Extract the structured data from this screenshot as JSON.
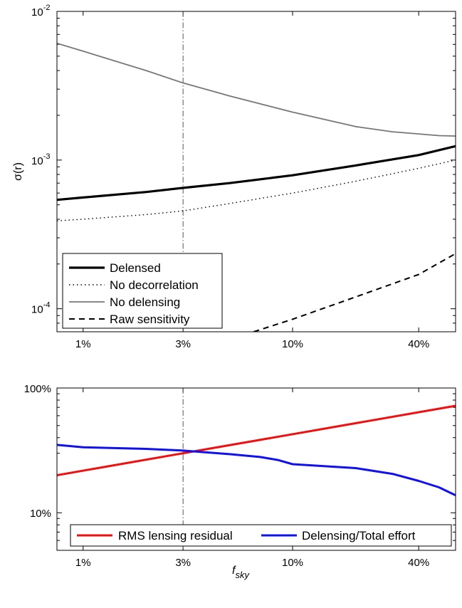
{
  "chart_data": [
    {
      "type": "line",
      "ylabel": "σ(r)",
      "xscale": "log",
      "yscale": "log",
      "xlim": [
        0.0075,
        0.6
      ],
      "ylim": [
        7e-05,
        0.01
      ],
      "x_ticks": [
        {
          "value": 0.01,
          "label": "1%"
        },
        {
          "value": 0.03,
          "label": "3%"
        },
        {
          "value": 0.1,
          "label": "10%"
        },
        {
          "value": 0.4,
          "label": "40%"
        }
      ],
      "y_ticks": [
        {
          "value": 0.0001,
          "base": "10",
          "exp": "-4"
        },
        {
          "value": 0.001,
          "base": "10",
          "exp": "-3"
        },
        {
          "value": 0.01,
          "base": "10",
          "exp": "-2"
        }
      ],
      "reference_line": {
        "x": 0.03,
        "style": "dash-dot"
      },
      "legend_position": "bottom-left",
      "series": [
        {
          "name": "Delensed",
          "style": "solid-thick",
          "color": "#000000",
          "x": [
            0.0075,
            0.01,
            0.02,
            0.03,
            0.05,
            0.1,
            0.2,
            0.4,
            0.6
          ],
          "y": [
            0.00054,
            0.00056,
            0.00061,
            0.00065,
            0.0007,
            0.00079,
            0.00092,
            0.00108,
            0.00124
          ]
        },
        {
          "name": "No decorrelation",
          "style": "dotted",
          "color": "#000000",
          "x": [
            0.0075,
            0.01,
            0.02,
            0.03,
            0.05,
            0.1,
            0.2,
            0.4,
            0.6
          ],
          "y": [
            0.00039,
            0.0004,
            0.00043,
            0.000455,
            0.00051,
            0.0006,
            0.00072,
            0.00088,
            0.001
          ]
        },
        {
          "name": "No delensing",
          "style": "solid",
          "color": "#777777",
          "x": [
            0.0075,
            0.01,
            0.02,
            0.03,
            0.05,
            0.1,
            0.2,
            0.3,
            0.4,
            0.5,
            0.6
          ],
          "y": [
            0.0061,
            0.0054,
            0.004,
            0.0033,
            0.0027,
            0.0021,
            0.00168,
            0.00155,
            0.0015,
            0.00146,
            0.00145
          ]
        },
        {
          "name": "Raw sensitivity",
          "style": "dashed",
          "color": "#000000",
          "x": [
            0.0652,
            0.1,
            0.2,
            0.4,
            0.6
          ],
          "y": [
            7e-05,
            8.5e-05,
            0.00012,
            0.00017,
            0.000235
          ]
        }
      ]
    },
    {
      "type": "line",
      "xlabel": "f_sky",
      "xlabel_main": "f",
      "xlabel_sub": "sky",
      "xscale": "log",
      "yscale": "log",
      "xlim": [
        0.0075,
        0.6
      ],
      "ylim": [
        0.05,
        1.0
      ],
      "x_ticks": [
        {
          "value": 0.01,
          "label": "1%"
        },
        {
          "value": 0.03,
          "label": "3%"
        },
        {
          "value": 0.1,
          "label": "10%"
        },
        {
          "value": 0.4,
          "label": "40%"
        }
      ],
      "y_ticks": [
        {
          "value": 0.1,
          "label": "10%"
        },
        {
          "value": 1.0,
          "label": "100%"
        }
      ],
      "reference_line": {
        "x": 0.03,
        "style": "dash-dot"
      },
      "legend_position": "bottom",
      "series": [
        {
          "name": "RMS lensing residual",
          "color": "#ee1111",
          "x": [
            0.0075,
            0.6
          ],
          "y": [
            0.2,
            0.72
          ]
        },
        {
          "name": "Delensing/Total effort",
          "color": "#1111ee",
          "x": [
            0.0075,
            0.01,
            0.02,
            0.03,
            0.05,
            0.07,
            0.085,
            0.1,
            0.2,
            0.3,
            0.4,
            0.5,
            0.6
          ],
          "y": [
            0.35,
            0.335,
            0.325,
            0.315,
            0.295,
            0.28,
            0.265,
            0.245,
            0.228,
            0.205,
            0.18,
            0.16,
            0.138
          ]
        }
      ]
    }
  ]
}
